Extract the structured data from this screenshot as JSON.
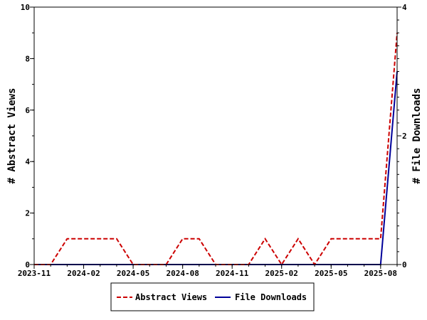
{
  "chart_data": {
    "type": "line",
    "x_ticks": [
      "2023-11",
      "2024-02",
      "2024-05",
      "2024-08",
      "2024-11",
      "2025-02",
      "2025-05",
      "2025-08"
    ],
    "x_range": [
      "2023-11",
      "2025-09"
    ],
    "x": [
      "2023-11",
      "2023-12",
      "2024-01",
      "2024-02",
      "2024-03",
      "2024-04",
      "2024-05",
      "2024-06",
      "2024-07",
      "2024-08",
      "2024-09",
      "2024-10",
      "2024-11",
      "2024-12",
      "2025-01",
      "2025-02",
      "2025-03",
      "2025-04",
      "2025-05",
      "2025-06",
      "2025-07",
      "2025-08",
      "2025-09"
    ],
    "ylabel_left": "# Abstract Views",
    "ylabel_right": "# File Downloads",
    "ylim_left": [
      0,
      10
    ],
    "ylim_right": [
      0,
      4
    ],
    "y_ticks_left": [
      "0",
      "2",
      "4",
      "6",
      "8",
      "10"
    ],
    "y_ticks_right": [
      "0",
      "2",
      "4"
    ],
    "grid": false,
    "legend_position": "bottom",
    "series": [
      {
        "name": "Abstract Views",
        "axis": "left",
        "color": "#cc0000",
        "style": "dashed",
        "values": [
          0,
          0,
          1,
          1,
          1,
          1,
          0,
          0,
          0,
          1,
          1,
          0,
          0,
          0,
          1,
          0,
          1,
          0,
          1,
          1,
          1,
          1,
          9
        ]
      },
      {
        "name": "File Downloads",
        "axis": "right",
        "color": "#000099",
        "style": "solid",
        "values": [
          0,
          0,
          0,
          0,
          0,
          0,
          0,
          0,
          0,
          0,
          0,
          0,
          0,
          0,
          0,
          0,
          0,
          0,
          0,
          0,
          0,
          0,
          3
        ]
      }
    ]
  }
}
